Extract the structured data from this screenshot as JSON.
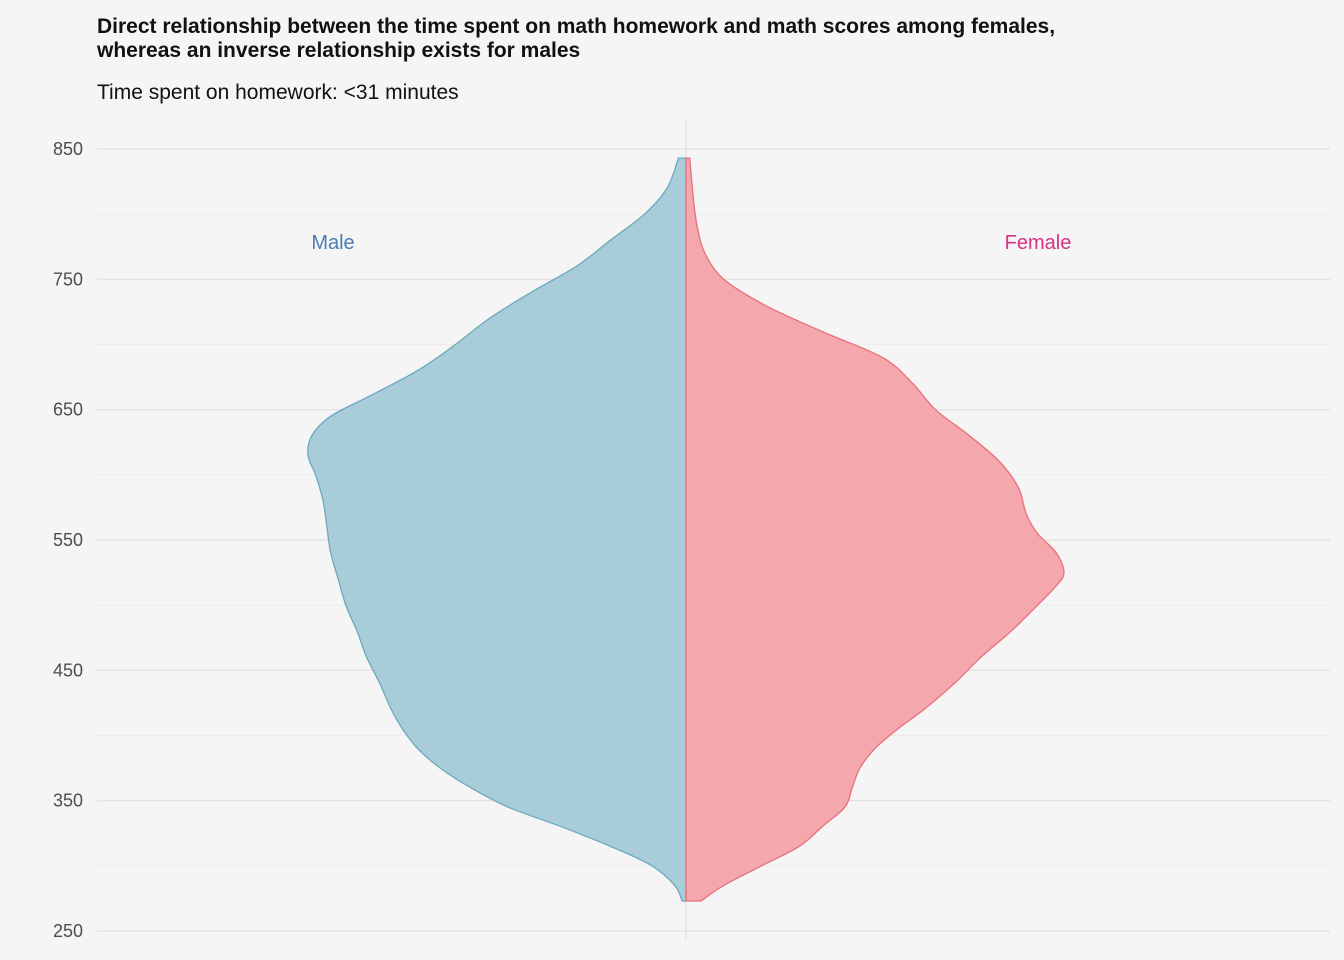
{
  "chart_data": {
    "type": "area",
    "title": "Direct relationship between the time spent on math homework and math scores among females,\nwhereas an inverse relationship exists for males",
    "subtitle": "Time spent on homework: <31 minutes",
    "xlabel": "",
    "ylabel": "",
    "ylim": [
      250,
      850
    ],
    "yticks": [
      250,
      350,
      450,
      550,
      650,
      750,
      850
    ],
    "grid": true,
    "legend": "none",
    "series": [
      {
        "name": "Male",
        "color": "#a8cdd9",
        "line_color": "#6aa9bf",
        "label_color": "#4a7db3",
        "side": "left",
        "points": [
          [
            273,
            0.01
          ],
          [
            285,
            0.03
          ],
          [
            300,
            0.09
          ],
          [
            315,
            0.2
          ],
          [
            330,
            0.33
          ],
          [
            345,
            0.47
          ],
          [
            360,
            0.57
          ],
          [
            375,
            0.65
          ],
          [
            390,
            0.71
          ],
          [
            405,
            0.75
          ],
          [
            420,
            0.78
          ],
          [
            440,
            0.81
          ],
          [
            460,
            0.845
          ],
          [
            480,
            0.87
          ],
          [
            500,
            0.9
          ],
          [
            520,
            0.92
          ],
          [
            540,
            0.94
          ],
          [
            560,
            0.95
          ],
          [
            580,
            0.96
          ],
          [
            600,
            0.98
          ],
          [
            615,
            1.0
          ],
          [
            630,
            0.99
          ],
          [
            645,
            0.94
          ],
          [
            660,
            0.84
          ],
          [
            680,
            0.71
          ],
          [
            700,
            0.61
          ],
          [
            720,
            0.52
          ],
          [
            740,
            0.41
          ],
          [
            760,
            0.29
          ],
          [
            780,
            0.2
          ],
          [
            800,
            0.11
          ],
          [
            820,
            0.05
          ],
          [
            843,
            0.02
          ]
        ]
      },
      {
        "name": "Female",
        "color": "#f4a7ad",
        "line_color": "#e8707b",
        "label_color": "#d63384",
        "side": "right",
        "points": [
          [
            273,
            0.04
          ],
          [
            285,
            0.1
          ],
          [
            300,
            0.2
          ],
          [
            315,
            0.3
          ],
          [
            330,
            0.36
          ],
          [
            345,
            0.42
          ],
          [
            360,
            0.44
          ],
          [
            375,
            0.46
          ],
          [
            390,
            0.5
          ],
          [
            405,
            0.56
          ],
          [
            420,
            0.63
          ],
          [
            440,
            0.71
          ],
          [
            460,
            0.78
          ],
          [
            480,
            0.86
          ],
          [
            500,
            0.93
          ],
          [
            515,
            0.98
          ],
          [
            525,
            1.0
          ],
          [
            540,
            0.98
          ],
          [
            555,
            0.93
          ],
          [
            570,
            0.9
          ],
          [
            590,
            0.88
          ],
          [
            610,
            0.83
          ],
          [
            630,
            0.75
          ],
          [
            650,
            0.66
          ],
          [
            670,
            0.6
          ],
          [
            690,
            0.52
          ],
          [
            710,
            0.36
          ],
          [
            730,
            0.21
          ],
          [
            750,
            0.1
          ],
          [
            770,
            0.05
          ],
          [
            790,
            0.03
          ],
          [
            810,
            0.02
          ],
          [
            843,
            0.01
          ]
        ]
      }
    ]
  }
}
